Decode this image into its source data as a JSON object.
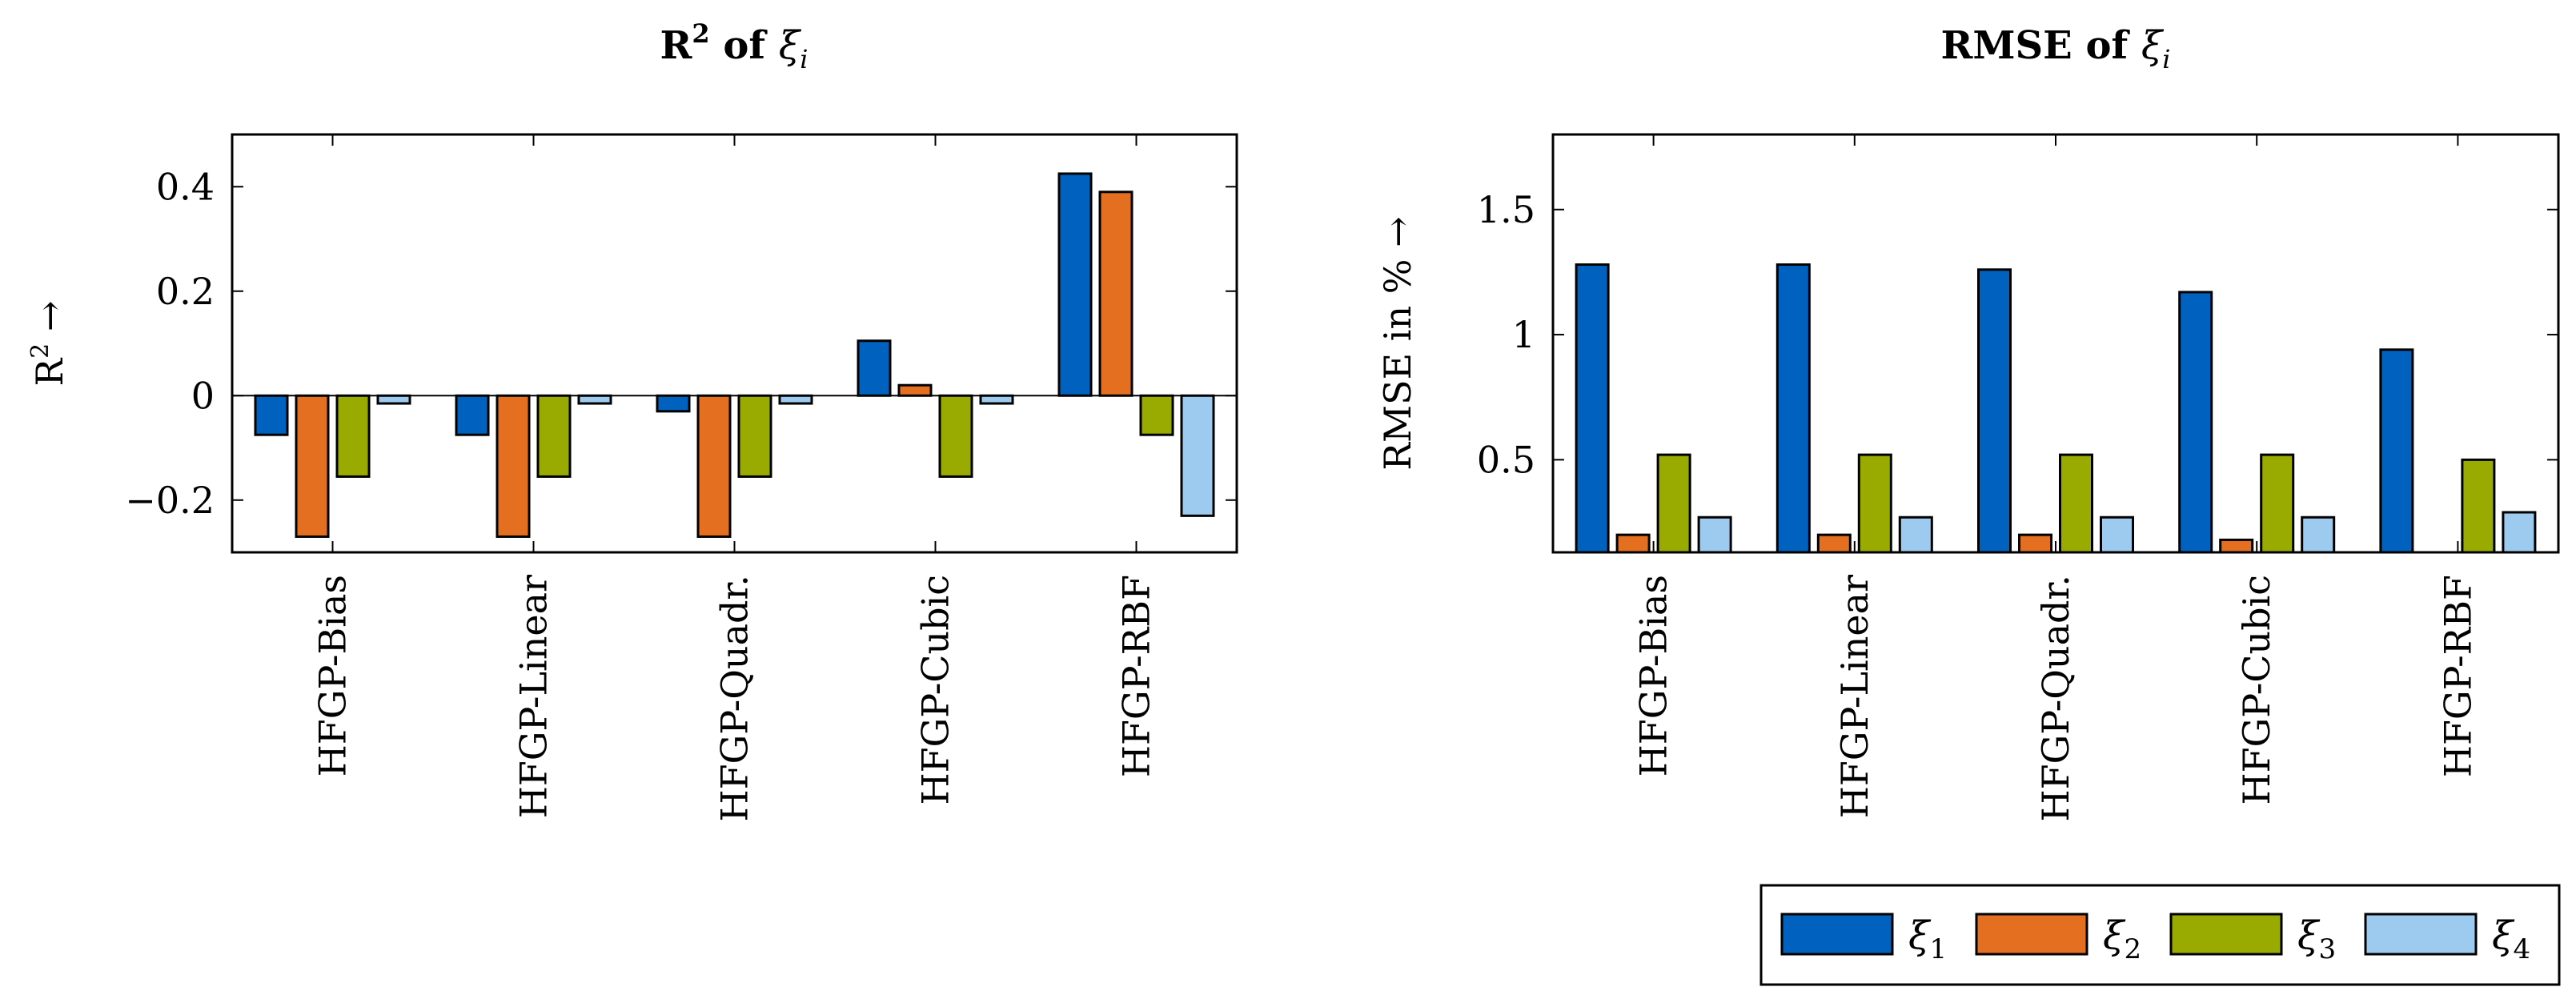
{
  "colors": {
    "xi1": "#0062be",
    "xi2": "#e56f20",
    "xi3": "#9aab00",
    "xi4": "#9dcbef"
  },
  "legend": [
    {
      "key": "xi1",
      "symbol": "ξ",
      "sub": "1"
    },
    {
      "key": "xi2",
      "symbol": "ξ",
      "sub": "2"
    },
    {
      "key": "xi3",
      "symbol": "ξ",
      "sub": "3"
    },
    {
      "key": "xi4",
      "symbol": "ξ",
      "sub": "4"
    }
  ],
  "chart_data": [
    {
      "type": "bar",
      "title_main": "R",
      "title_sup": "2",
      "title_of": " of ",
      "title_var": "ξ",
      "title_sub": "i",
      "ylabel": "R",
      "ylabel_sup": "2",
      "ylabel_arrow": "→",
      "ylim": [
        -0.3,
        0.5
      ],
      "yticks": [
        -0.2,
        0,
        0.2,
        0.4
      ],
      "ytick_labels": [
        "−0.2",
        "0",
        "0.2",
        "0.4"
      ],
      "categories": [
        "HFGP-Bias",
        "HFGP-Linear",
        "HFGP-Quadr.",
        "HFGP-Cubic",
        "HFGP-RBF"
      ],
      "series": [
        {
          "name": "ξ1",
          "key": "xi1",
          "values": [
            -0.075,
            -0.075,
            -0.03,
            0.105,
            0.425
          ]
        },
        {
          "name": "ξ2",
          "key": "xi2",
          "values": [
            -0.27,
            -0.27,
            -0.27,
            0.02,
            0.39
          ]
        },
        {
          "name": "ξ3",
          "key": "xi3",
          "values": [
            -0.155,
            -0.155,
            -0.155,
            -0.155,
            -0.075
          ]
        },
        {
          "name": "ξ4",
          "key": "xi4",
          "values": [
            -0.015,
            -0.015,
            -0.015,
            -0.015,
            -0.23
          ]
        }
      ]
    },
    {
      "type": "bar",
      "title_main": "RMSE",
      "title_sup": "",
      "title_of": " of ",
      "title_var": "ξ",
      "title_sub": "i",
      "ylabel": "RMSE in %",
      "ylabel_sup": "",
      "ylabel_arrow": "→",
      "ylim": [
        0.13,
        1.8
      ],
      "yticks": [
        0.5,
        1,
        1.5
      ],
      "ytick_labels": [
        "0.5",
        "1",
        "1.5"
      ],
      "categories": [
        "HFGP-Bias",
        "HFGP-Linear",
        "HFGP-Quadr.",
        "HFGP-Cubic",
        "HFGP-RBF"
      ],
      "series": [
        {
          "name": "ξ1",
          "key": "xi1",
          "values": [
            1.28,
            1.28,
            1.26,
            1.17,
            0.94
          ]
        },
        {
          "name": "ξ2",
          "key": "xi2",
          "values": [
            0.2,
            0.2,
            0.2,
            0.18,
            0.13
          ]
        },
        {
          "name": "ξ3",
          "key": "xi3",
          "values": [
            0.52,
            0.52,
            0.52,
            0.52,
            0.5
          ]
        },
        {
          "name": "ξ4",
          "key": "xi4",
          "values": [
            0.27,
            0.27,
            0.27,
            0.27,
            0.29
          ]
        }
      ]
    }
  ]
}
